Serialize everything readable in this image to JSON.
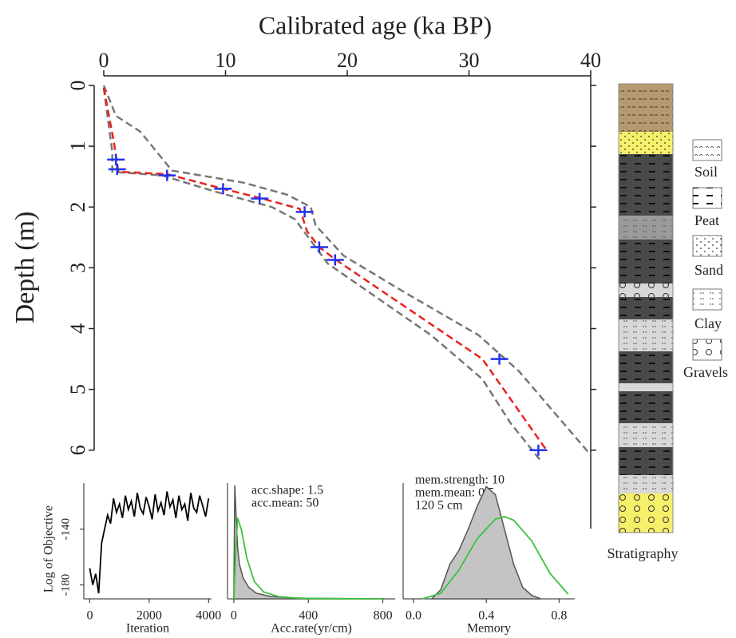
{
  "chart_data": [
    {
      "type": "line",
      "title": "Calibrated age (ka BP)",
      "ylabel": "Depth (m)",
      "xlim": [
        0,
        40
      ],
      "xticks": [
        0,
        10,
        20,
        30,
        40
      ],
      "ylim": [
        0,
        6.2
      ],
      "yticks": [
        0,
        1,
        2,
        3,
        4,
        5,
        6
      ],
      "y_inverted": true,
      "series": [
        {
          "color": "#777777",
          "dash": true,
          "x": [
            0,
            1,
            3,
            5.6,
            11.5,
            15.1,
            17,
            17.4,
            19.7,
            24.6,
            30.8,
            34.1,
            40
          ],
          "values": [
            0,
            0.5,
            0.76,
            1.4,
            1.6,
            1.8,
            2.0,
            2.3,
            2.8,
            3.39,
            4.11,
            4.7,
            6.08
          ]
        },
        {
          "color": "#777777",
          "dash": true,
          "x": [
            0,
            0.7,
            0.7,
            4.8,
            9.2,
            13.8,
            15.7,
            17.4,
            18.4,
            26.9,
            31.1,
            33.4,
            36
          ],
          "values": [
            0.04,
            1.1,
            1.42,
            1.48,
            1.75,
            2.0,
            2.2,
            2.66,
            2.93,
            4.11,
            4.83,
            5.55,
            6.2
          ]
        },
        {
          "color": "#e8231d",
          "dash": true,
          "x": [
            0,
            0.85,
            1.1,
            1.2,
            5.2,
            9.8,
            12.8,
            16.1,
            16.7,
            17.7,
            19,
            31.1,
            36.4
          ],
          "values": [
            0.04,
            0.96,
            1.3,
            1.42,
            1.46,
            1.7,
            1.85,
            2.03,
            2.4,
            2.66,
            2.86,
            4.5,
            6.01
          ]
        },
        {
          "color": "#2233ee",
          "marker": "cross",
          "x": [
            1.0,
            1.1,
            5.2,
            9.8,
            12.8,
            16.5,
            17.7,
            19,
            32.5,
            35.7
          ],
          "values": [
            1.22,
            1.38,
            1.48,
            1.7,
            1.86,
            2.08,
            2.66,
            2.87,
            4.5,
            6.0
          ]
        }
      ],
      "stratigraphy": {
        "label": "Stratigraphy",
        "legend": [
          "Soil",
          "Peat",
          "Sand",
          "Clay",
          "Gravels"
        ]
      }
    },
    {
      "type": "line",
      "xlabel": "Iteration",
      "ylabel": "Log of Objective",
      "xlim": [
        -200,
        4100
      ],
      "xticks": [
        0,
        2000,
        4000
      ],
      "ylim": [
        -190,
        -107
      ],
      "yticks": [
        -140,
        -180
      ],
      "series": [
        {
          "color": "#000000",
          "x": [
            0,
            100,
            200,
            300,
            400,
            500,
            600,
            700,
            800,
            900,
            1000,
            1100,
            1200,
            1300,
            1400,
            1500,
            1600,
            1700,
            1800,
            1900,
            2000,
            2100,
            2200,
            2300,
            2400,
            2500,
            2600,
            2700,
            2800,
            2900,
            3000,
            3100,
            3200,
            3300,
            3400,
            3500,
            3600,
            3700,
            3800,
            3900,
            4000
          ],
          "values": [
            -168,
            -180,
            -172,
            -186,
            -150,
            -140,
            -130,
            -136,
            -118,
            -128,
            -122,
            -132,
            -116,
            -126,
            -120,
            -131,
            -114,
            -125,
            -129,
            -117,
            -124,
            -133,
            -115,
            -127,
            -121,
            -130,
            -113,
            -124,
            -119,
            -132,
            -116,
            -126,
            -122,
            -134,
            -114,
            -125,
            -128,
            -116,
            -123,
            -131,
            -118
          ]
        }
      ]
    },
    {
      "type": "area",
      "xlabel": "Acc.rate(yr/cm)",
      "annotations": [
        "acc.shape: 1.5",
        "acc.mean: 50"
      ],
      "xlim": [
        -34,
        866
      ],
      "xticks": [
        0,
        400,
        800
      ],
      "ylim": [
        0,
        1
      ],
      "series": [
        {
          "color": "#555555",
          "fill": "#c4c4c4",
          "x": [
            0,
            5,
            10,
            20,
            30,
            50,
            80,
            120,
            200,
            300,
            400,
            600,
            800
          ],
          "values": [
            0,
            0.98,
            0.8,
            0.45,
            0.3,
            0.18,
            0.1,
            0.05,
            0.02,
            0.01,
            0.005,
            0.003,
            0.002
          ]
        },
        {
          "color": "#3cc23c",
          "x": [
            0,
            10,
            20,
            40,
            70,
            110,
            160,
            240,
            350,
            500,
            650,
            800
          ],
          "values": [
            0,
            0.4,
            0.7,
            0.6,
            0.35,
            0.15,
            0.06,
            0.02,
            0.005,
            0.002,
            0.001,
            0.001
          ]
        }
      ]
    },
    {
      "type": "area",
      "xlabel": "Memory",
      "annotations": [
        "mem.strength: 10",
        "mem.mean: 0.5",
        "120 5 cm"
      ],
      "xlim": [
        -0.057,
        0.886
      ],
      "xticks": [
        {
          "value": 0,
          "label": "0.0"
        },
        0.4,
        0.8
      ],
      "ylim": [
        0,
        1
      ],
      "series": [
        {
          "color": "#555555",
          "fill": "#c4c4c4",
          "x": [
            0.1,
            0.15,
            0.2,
            0.25,
            0.3,
            0.35,
            0.4,
            0.45,
            0.5,
            0.55,
            0.6,
            0.65,
            0.7
          ],
          "values": [
            0,
            0.08,
            0.3,
            0.42,
            0.6,
            0.8,
            0.97,
            0.9,
            0.6,
            0.3,
            0.1,
            0.03,
            0
          ]
        },
        {
          "color": "#3cc23c",
          "x": [
            0.05,
            0.15,
            0.25,
            0.35,
            0.45,
            0.5,
            0.55,
            0.65,
            0.75,
            0.85
          ],
          "values": [
            0,
            0.05,
            0.25,
            0.52,
            0.69,
            0.71,
            0.68,
            0.5,
            0.22,
            0.04
          ]
        }
      ]
    }
  ]
}
